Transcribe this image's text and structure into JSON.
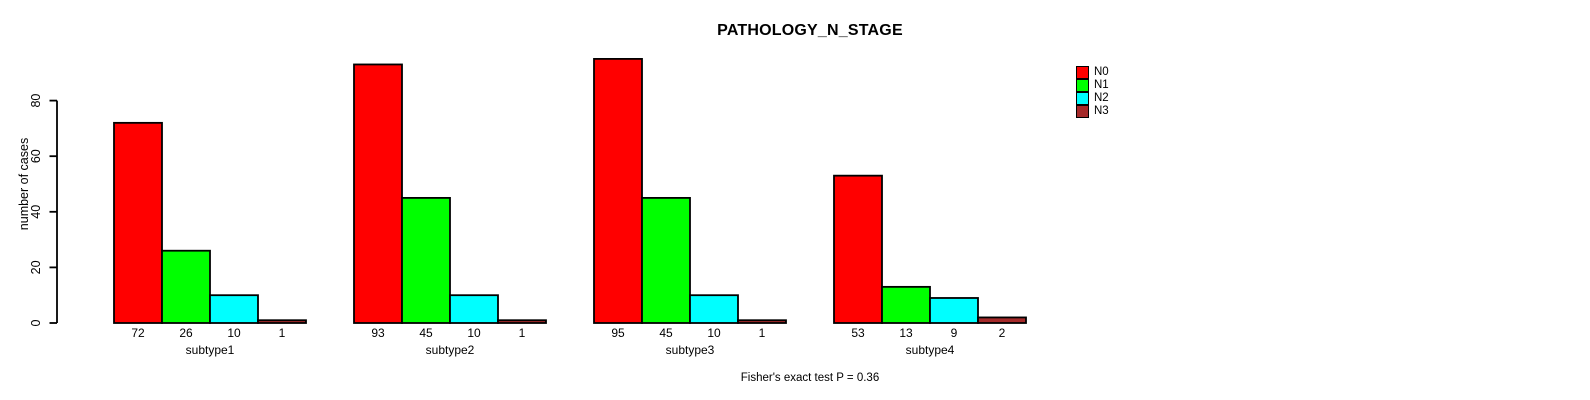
{
  "title": "PATHOLOGY_N_STAGE",
  "y_axis": {
    "label": "number of cases",
    "ticks": [
      0,
      20,
      40,
      60,
      80
    ]
  },
  "legend": {
    "entries": [
      {
        "label": "N0",
        "color": "#FF0000"
      },
      {
        "label": "N1",
        "color": "#00FF00"
      },
      {
        "label": "N2",
        "color": "#00FFFF"
      },
      {
        "label": "N3",
        "color": "#A52A2A"
      }
    ]
  },
  "footer": {
    "stats_text": "Fisher's exact test P = 0.36"
  },
  "chart_data": {
    "type": "bar",
    "title": "PATHOLOGY_N_STAGE",
    "xlabel": "",
    "ylabel": "number of cases",
    "categories": [
      "subtype1",
      "subtype2",
      "subtype3",
      "subtype4"
    ],
    "series": [
      {
        "name": "N0",
        "color": "#FF0000",
        "values": [
          72,
          93,
          95,
          53
        ]
      },
      {
        "name": "N1",
        "color": "#00FF00",
        "values": [
          26,
          45,
          45,
          13
        ]
      },
      {
        "name": "N2",
        "color": "#00FFFF",
        "values": [
          10,
          10,
          10,
          9
        ]
      },
      {
        "name": "N3",
        "color": "#A52A2A",
        "values": [
          1,
          1,
          1,
          2
        ]
      }
    ],
    "bar_value_labels": [
      [
        72,
        26,
        10,
        1
      ],
      [
        93,
        45,
        10,
        1
      ],
      [
        95,
        45,
        10,
        1
      ],
      [
        53,
        13,
        9,
        2
      ]
    ],
    "ylim": [
      0,
      80
    ],
    "yticks": [
      0,
      20,
      40,
      60,
      80
    ],
    "grid": false,
    "legend_position": "right-top",
    "annotation": "Fisher's exact test P = 0.36"
  }
}
